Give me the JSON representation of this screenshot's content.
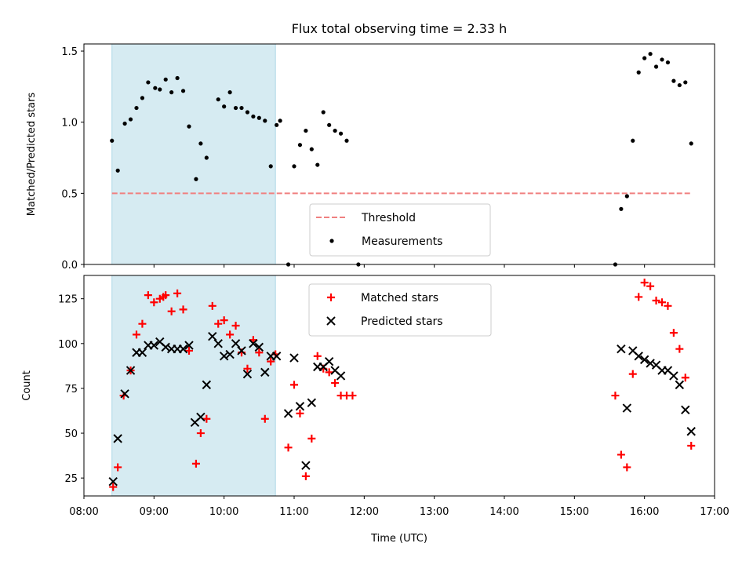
{
  "chart_data": [
    {
      "type": "scatter",
      "title": "Flux total observing time = 2.33 h",
      "xlabel": "",
      "ylabel": "Matched/Predicted stars",
      "ylim": [
        0,
        1.55
      ],
      "yticks": [
        "0.0",
        "0.5",
        "1.0",
        "1.5"
      ],
      "ytick_values": [
        0,
        0.5,
        1.0,
        1.5
      ],
      "xlim": [
        "08:00",
        "17:00"
      ],
      "shaded_interval": [
        "08:24",
        "10:44"
      ],
      "shade_color": "#add8e6",
      "legend_position": "lower center",
      "series": [
        {
          "name": "Threshold",
          "style": "dashed-line",
          "color": "#f08080",
          "x": [
            "08:24",
            "16:40"
          ],
          "y": [
            0.5,
            0.5
          ]
        },
        {
          "name": "Measurements",
          "style": "dot",
          "color": "#000000",
          "x": [
            "08:24",
            "08:29",
            "08:35",
            "08:40",
            "08:45",
            "08:50",
            "08:55",
            "09:01",
            "09:05",
            "09:10",
            "09:15",
            "09:20",
            "09:25",
            "09:30",
            "09:36",
            "09:40",
            "09:45",
            "09:55",
            "10:00",
            "10:05",
            "10:10",
            "10:15",
            "10:20",
            "10:25",
            "10:30",
            "10:35",
            "10:40",
            "10:45",
            "10:48",
            "10:55",
            "11:00",
            "11:05",
            "11:10",
            "11:15",
            "11:20",
            "11:25",
            "11:30",
            "11:35",
            "11:40",
            "11:45",
            "11:55",
            "15:35",
            "15:40",
            "15:45",
            "15:50",
            "15:55",
            "16:00",
            "16:05",
            "16:10",
            "16:15",
            "16:20",
            "16:25",
            "16:30",
            "16:35",
            "16:40"
          ],
          "y": [
            0.87,
            0.66,
            0.99,
            1.02,
            1.1,
            1.17,
            1.28,
            1.24,
            1.23,
            1.3,
            1.21,
            1.31,
            1.22,
            0.97,
            0.6,
            0.85,
            0.75,
            1.16,
            1.11,
            1.21,
            1.1,
            1.1,
            1.07,
            1.04,
            1.03,
            1.01,
            0.69,
            0.98,
            1.01,
            0.0,
            0.69,
            0.84,
            0.94,
            0.81,
            0.7,
            1.07,
            0.98,
            0.94,
            0.92,
            0.87,
            0.0,
            0.0,
            0.39,
            0.48,
            0.87,
            1.35,
            1.45,
            1.48,
            1.39,
            1.44,
            1.42,
            1.29,
            1.26,
            1.28,
            0.85
          ]
        }
      ]
    },
    {
      "type": "scatter",
      "title": "",
      "xlabel": "Time (UTC)",
      "ylabel": "Count",
      "ylim": [
        15,
        138
      ],
      "yticks": [
        "25",
        "50",
        "75",
        "100",
        "125"
      ],
      "ytick_values": [
        25,
        50,
        75,
        100,
        125
      ],
      "xlim": [
        "08:00",
        "17:00"
      ],
      "xticks": [
        "08:00",
        "09:00",
        "10:00",
        "11:00",
        "12:00",
        "13:00",
        "14:00",
        "15:00",
        "16:00",
        "17:00"
      ],
      "shaded_interval": [
        "08:24",
        "10:44"
      ],
      "shade_color": "#add8e6",
      "legend_position": "upper center",
      "series": [
        {
          "name": "Matched stars",
          "style": "plus",
          "color": "#ff0000",
          "x": [
            "08:25",
            "08:29",
            "08:34",
            "08:40",
            "08:45",
            "08:50",
            "08:55",
            "09:00",
            "09:05",
            "09:08",
            "09:10",
            "09:15",
            "09:20",
            "09:25",
            "09:30",
            "09:36",
            "09:40",
            "09:45",
            "09:50",
            "09:55",
            "10:00",
            "10:05",
            "10:10",
            "10:15",
            "10:20",
            "10:25",
            "10:30",
            "10:35",
            "10:40",
            "10:44",
            "10:55",
            "11:00",
            "11:05",
            "11:10",
            "11:15",
            "11:20",
            "11:25",
            "11:30",
            "11:35",
            "11:40",
            "11:45",
            "11:50",
            "15:35",
            "15:40",
            "15:45",
            "15:50",
            "15:55",
            "16:00",
            "16:05",
            "16:10",
            "16:15",
            "16:20",
            "16:25",
            "16:30",
            "16:35",
            "16:40"
          ],
          "y": [
            20,
            31,
            71,
            85,
            105,
            111,
            127,
            123,
            125,
            126,
            127,
            118,
            128,
            119,
            96,
            33,
            50,
            58,
            121,
            111,
            113,
            105,
            110,
            95,
            86,
            102,
            95,
            58,
            90,
            94,
            42,
            77,
            61,
            26,
            47,
            93,
            86,
            84,
            78,
            71,
            71,
            71,
            71,
            38,
            31,
            83,
            126,
            134,
            132,
            124,
            123,
            121,
            106,
            97,
            81,
            43
          ]
        },
        {
          "name": "Predicted stars",
          "style": "x",
          "color": "#000000",
          "x": [
            "08:25",
            "08:29",
            "08:35",
            "08:40",
            "08:45",
            "08:50",
            "08:55",
            "09:00",
            "09:05",
            "09:10",
            "09:15",
            "09:20",
            "09:25",
            "09:30",
            "09:35",
            "09:40",
            "09:45",
            "09:50",
            "09:55",
            "10:00",
            "10:05",
            "10:10",
            "10:15",
            "10:20",
            "10:25",
            "10:30",
            "10:35",
            "10:40",
            "10:45",
            "10:55",
            "11:00",
            "11:05",
            "11:10",
            "11:15",
            "11:20",
            "11:25",
            "11:30",
            "11:35",
            "11:40",
            "15:40",
            "15:45",
            "15:50",
            "15:55",
            "16:00",
            "16:05",
            "16:10",
            "16:15",
            "16:20",
            "16:25",
            "16:30",
            "16:35",
            "16:40"
          ],
          "y": [
            23,
            47,
            72,
            85,
            95,
            95,
            99,
            99,
            101,
            98,
            97,
            97,
            97,
            99,
            56,
            59,
            77,
            104,
            100,
            93,
            94,
            100,
            96,
            83,
            100,
            98,
            84,
            93,
            93,
            61,
            92,
            65,
            32,
            67,
            87,
            87,
            90,
            85,
            82,
            97,
            64,
            96,
            93,
            91,
            89,
            88,
            85,
            85,
            82,
            77,
            63,
            51
          ]
        }
      ]
    }
  ]
}
